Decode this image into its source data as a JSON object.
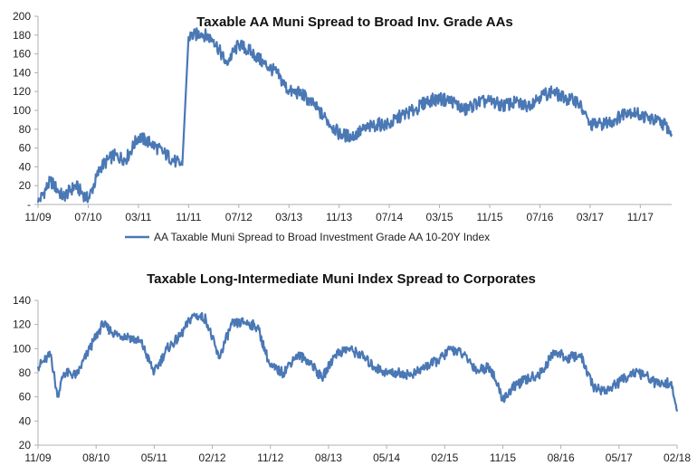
{
  "colors": {
    "line": "#4a78b5",
    "axis": "#b0b0b0",
    "text": "#222222"
  },
  "chart_data": [
    {
      "type": "line",
      "title": "Taxable AA Muni Spread to Broad Inv. Grade AAs",
      "xlabel": "",
      "ylabel": "",
      "ylim": [
        0,
        200
      ],
      "yticks": [
        0,
        20,
        40,
        60,
        80,
        100,
        120,
        140,
        160,
        180,
        200
      ],
      "ytick_labels": [
        "-",
        "20",
        "40",
        "60",
        "80",
        "100",
        "120",
        "140",
        "160",
        "180",
        "200"
      ],
      "xlim": [
        "2009-11",
        "2018-04"
      ],
      "xticks": [
        "2009-11",
        "2010-07",
        "2011-03",
        "2011-11",
        "2012-07",
        "2013-03",
        "2013-11",
        "2014-07",
        "2015-03",
        "2015-11",
        "2016-07",
        "2017-03",
        "2017-11"
      ],
      "xtick_labels": [
        "11/09",
        "07/10",
        "03/11",
        "11/11",
        "07/12",
        "03/13",
        "11/13",
        "07/14",
        "03/15",
        "11/15",
        "07/16",
        "03/17",
        "11/17"
      ],
      "grid": false,
      "legend": "bottom-center",
      "series": [
        {
          "name": "AA Taxable Muni Spread to Broad Investment Grade AA 10-20Y Index",
          "x": [
            "2009-11",
            "2010-01",
            "2010-03",
            "2010-05",
            "2010-07",
            "2010-09",
            "2010-11",
            "2011-01",
            "2011-03",
            "2011-05",
            "2011-07",
            "2011-09",
            "2011-10",
            "2011-11",
            "2012-01",
            "2012-03",
            "2012-05",
            "2012-07",
            "2012-09",
            "2012-11",
            "2013-01",
            "2013-03",
            "2013-05",
            "2013-07",
            "2013-09",
            "2013-11",
            "2014-01",
            "2014-03",
            "2014-05",
            "2014-07",
            "2014-09",
            "2014-11",
            "2015-01",
            "2015-03",
            "2015-05",
            "2015-07",
            "2015-09",
            "2015-11",
            "2016-01",
            "2016-03",
            "2016-05",
            "2016-07",
            "2016-09",
            "2016-11",
            "2017-01",
            "2017-03",
            "2017-05",
            "2017-07",
            "2017-09",
            "2017-11",
            "2018-01",
            "2018-03",
            "2018-04"
          ],
          "values": [
            2,
            25,
            8,
            20,
            5,
            40,
            52,
            48,
            72,
            65,
            55,
            45,
            42,
            178,
            182,
            175,
            150,
            170,
            162,
            150,
            140,
            120,
            118,
            105,
            90,
            75,
            72,
            80,
            85,
            85,
            95,
            100,
            110,
            112,
            110,
            100,
            108,
            110,
            105,
            108,
            105,
            115,
            120,
            112,
            110,
            85,
            85,
            90,
            100,
            95,
            90,
            85,
            75
          ]
        }
      ]
    },
    {
      "type": "line",
      "title": "Taxable Long-Intermediate Muni Index Spread to Corporates",
      "xlabel": "",
      "ylabel": "",
      "ylim": [
        20,
        140
      ],
      "yticks": [
        20,
        40,
        60,
        80,
        100,
        120,
        140
      ],
      "ytick_labels": [
        "20",
        "40",
        "60",
        "80",
        "100",
        "120",
        "140"
      ],
      "xlim": [
        "2009-11",
        "2018-02"
      ],
      "xticks": [
        "2009-11",
        "2010-08",
        "2011-05",
        "2012-02",
        "2012-11",
        "2013-08",
        "2014-05",
        "2015-02",
        "2015-11",
        "2016-08",
        "2017-05",
        "2018-02"
      ],
      "xtick_labels": [
        "11/09",
        "08/10",
        "05/11",
        "02/12",
        "11/12",
        "08/13",
        "05/14",
        "02/15",
        "11/15",
        "08/16",
        "05/17",
        "02/18"
      ],
      "grid": false,
      "legend": "none",
      "series": [
        {
          "name": "",
          "x": [
            "2009-11",
            "2010-01",
            "2010-02",
            "2010-03",
            "2010-05",
            "2010-07",
            "2010-09",
            "2010-11",
            "2011-01",
            "2011-03",
            "2011-05",
            "2011-07",
            "2011-09",
            "2011-11",
            "2012-01",
            "2012-03",
            "2012-05",
            "2012-07",
            "2012-09",
            "2012-11",
            "2013-01",
            "2013-03",
            "2013-05",
            "2013-07",
            "2013-09",
            "2013-11",
            "2014-01",
            "2014-03",
            "2014-05",
            "2014-07",
            "2014-09",
            "2014-11",
            "2015-01",
            "2015-03",
            "2015-05",
            "2015-07",
            "2015-09",
            "2015-11",
            "2016-01",
            "2016-03",
            "2016-05",
            "2016-07",
            "2016-09",
            "2016-11",
            "2017-01",
            "2017-03",
            "2017-05",
            "2017-07",
            "2017-09",
            "2017-11",
            "2018-01",
            "2018-02"
          ],
          "values": [
            85,
            95,
            60,
            80,
            78,
            100,
            120,
            112,
            110,
            105,
            80,
            100,
            110,
            128,
            125,
            92,
            120,
            122,
            118,
            85,
            80,
            95,
            90,
            75,
            95,
            100,
            95,
            85,
            80,
            80,
            78,
            85,
            90,
            100,
            95,
            82,
            85,
            58,
            70,
            75,
            80,
            98,
            92,
            95,
            68,
            65,
            72,
            80,
            78,
            70,
            72,
            48
          ]
        }
      ]
    }
  ]
}
